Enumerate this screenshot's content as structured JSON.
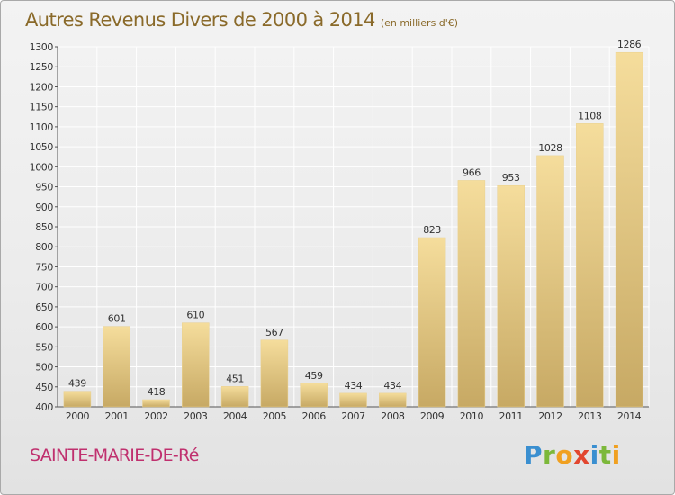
{
  "header": {
    "title": "Autres Revenus Divers de 2000 à 2014",
    "subtitle": "(en milliers d'€)"
  },
  "footer": {
    "town": "SAINTE-MARIE-DE-Ré",
    "logo": "Proxiti"
  },
  "colors": {
    "bar_light": "#f4dc9a",
    "bar_dark": "#c9ab66",
    "title": "#8a6a2a",
    "town": "#c0306e",
    "grid": "#ffffff"
  },
  "chart_data": {
    "type": "bar",
    "title": "Autres Revenus Divers de 2000 à 2014",
    "subtitle": "(en milliers d'€)",
    "categories": [
      "2000",
      "2001",
      "2002",
      "2003",
      "2004",
      "2005",
      "2006",
      "2007",
      "2008",
      "2009",
      "2010",
      "2011",
      "2012",
      "2013",
      "2014"
    ],
    "values": [
      439,
      601,
      418,
      610,
      451,
      567,
      459,
      434,
      434,
      823,
      966,
      953,
      1028,
      1108,
      1286
    ],
    "ylim": [
      400,
      1300
    ],
    "yticks": [
      400,
      450,
      500,
      550,
      600,
      650,
      700,
      750,
      800,
      850,
      900,
      950,
      1000,
      1050,
      1100,
      1150,
      1200,
      1250,
      1300
    ],
    "grid": true,
    "xlabel": "",
    "ylabel": ""
  }
}
